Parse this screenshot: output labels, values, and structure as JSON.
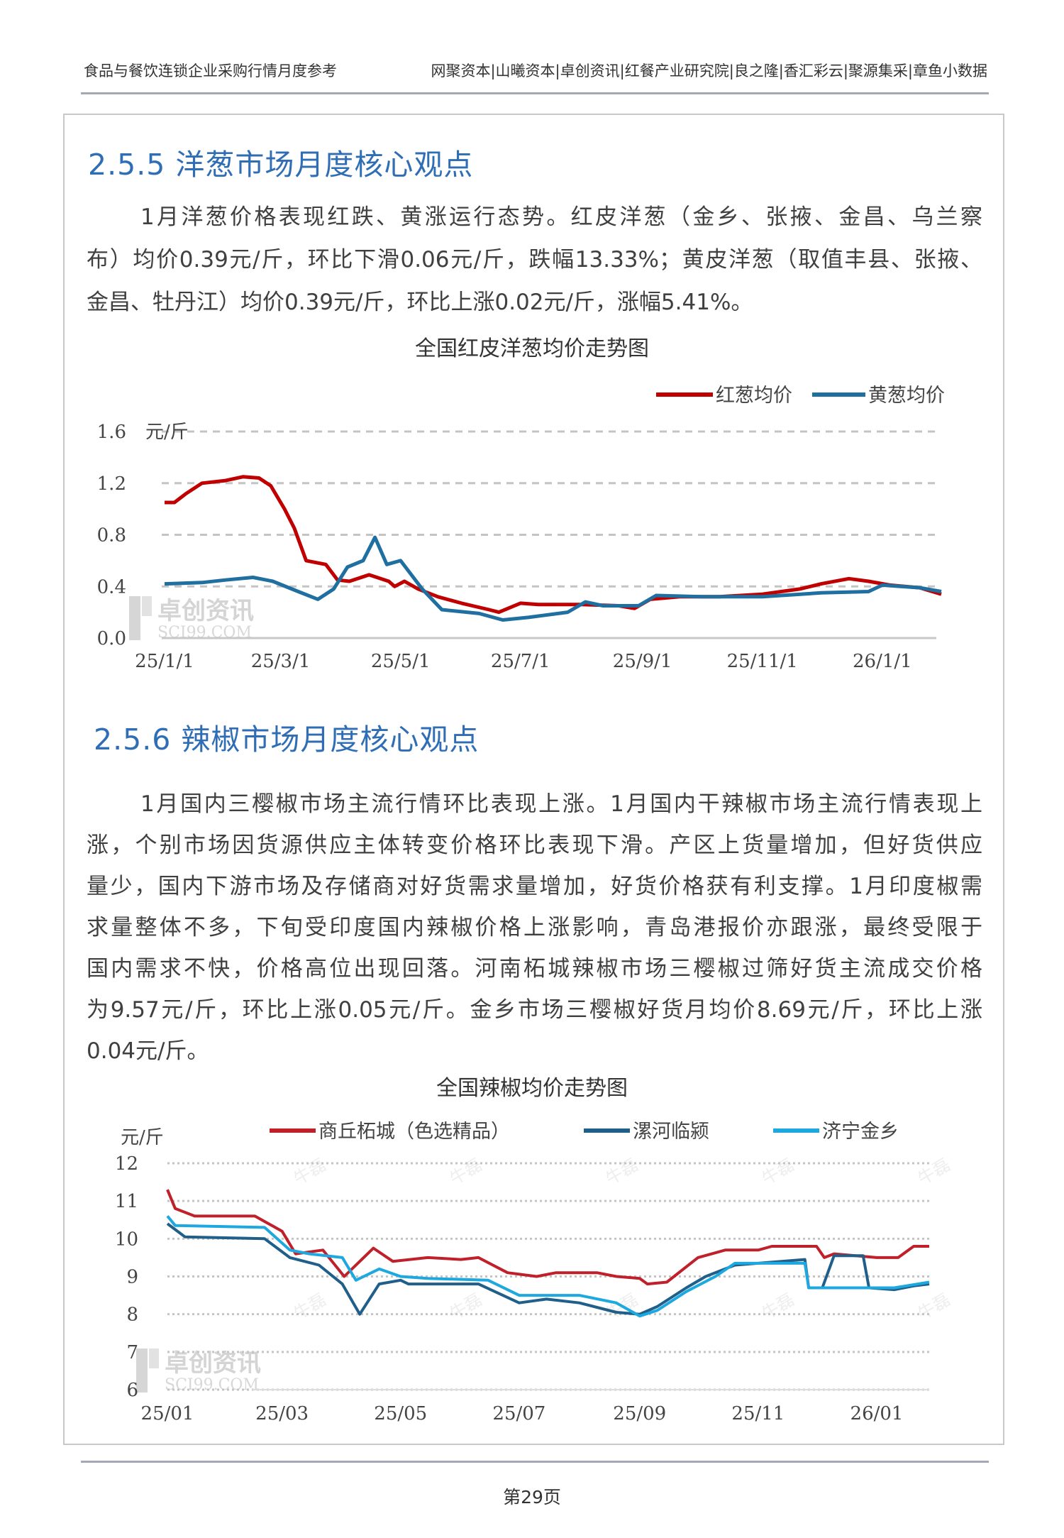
{
  "header": {
    "left": "食品与餐饮连锁企业采购行情月度参考",
    "right": "网聚资本|山曦资本|卓创资讯|红餐产业研究院|良之隆|香汇彩云|聚源集采|章鱼小数据"
  },
  "section_onion": {
    "heading": "2.5.5  洋葱市场月度核心观点",
    "lines": [
      "1月洋葱价格表现红跌、黄涨运行态势。红皮洋葱（金乡、张掖、金昌、乌兰察",
      "布）均价0.39元/斤，环比下滑0.06元/斤，跌幅13.33%；黄皮洋葱（取值丰县、张掖、",
      "金昌、牡丹江）均价0.39元/斤，环比上涨0.02元/斤，涨幅5.41%。"
    ],
    "chart_title": "全国红皮洋葱均价走势图"
  },
  "section_pepper": {
    "heading": "2.5.6  辣椒市场月度核心观点",
    "lines": [
      "1月国内三樱椒市场主流行情环比表现上涨。1月国内干辣椒市场主流行情表现上",
      "涨，个别市场因货源供应主体转变价格环比表现下滑。产区上货量增加，但好货供应",
      "量少，国内下游市场及存储商对好货需求量增加，好货价格获有利支撑。1月印度椒需",
      "求量整体不多，下旬受印度国内辣椒价格上涨影响，青岛港报价亦跟涨，最终受限于",
      "国内需求不快，价格高位出现回落。河南柘城辣椒市场三樱椒过筛好货主流成交价格",
      "为9.57元/斤，环比上涨0.05元/斤。金乡市场三樱椒好货月均价8.69元/斤，环比上涨",
      "0.04元/斤。"
    ],
    "chart_title": "全国辣椒均价走势图"
  },
  "watermark": {
    "cn": "卓创资讯",
    "en": "SCI99.COM",
    "author": "牛磊"
  },
  "footer": {
    "page": "第29页"
  },
  "chart_data": [
    {
      "type": "line",
      "title": "全国红皮洋葱均价走势图",
      "ylabel": "元/斤",
      "ylim": [
        0,
        1.6
      ],
      "yticks": [
        "0.0",
        "0.4",
        "0.8",
        "1.2",
        "1.6"
      ],
      "xticks": [
        "25/1/1",
        "25/3/1",
        "25/5/1",
        "25/7/1",
        "25/9/1",
        "25/11/1",
        "26/1/1"
      ],
      "xtick_dates": [
        "2025-01-01",
        "2025-03-01",
        "2025-05-01",
        "2025-07-01",
        "2025-09-01",
        "2025-11-01",
        "2026-01-01"
      ],
      "xlim": [
        "2025-01-01",
        "2026-01-31"
      ],
      "grid": true,
      "legend": "top-right",
      "series": [
        {
          "name": "红葱均价",
          "color": "#c00000",
          "points": [
            [
              "2025-01-01",
              1.05
            ],
            [
              "2025-01-06",
              1.05
            ],
            [
              "2025-01-12",
              1.12
            ],
            [
              "2025-01-20",
              1.2
            ],
            [
              "2025-02-01",
              1.22
            ],
            [
              "2025-02-10",
              1.25
            ],
            [
              "2025-02-18",
              1.24
            ],
            [
              "2025-02-24",
              1.18
            ],
            [
              "2025-03-03",
              1.0
            ],
            [
              "2025-03-08",
              0.85
            ],
            [
              "2025-03-14",
              0.6
            ],
            [
              "2025-03-24",
              0.57
            ],
            [
              "2025-03-30",
              0.45
            ],
            [
              "2025-04-05",
              0.44
            ],
            [
              "2025-04-15",
              0.49
            ],
            [
              "2025-04-25",
              0.44
            ],
            [
              "2025-04-28",
              0.4
            ],
            [
              "2025-05-03",
              0.44
            ],
            [
              "2025-05-10",
              0.38
            ],
            [
              "2025-05-20",
              0.32
            ],
            [
              "2025-06-01",
              0.27
            ],
            [
              "2025-06-15",
              0.22
            ],
            [
              "2025-06-20",
              0.2
            ],
            [
              "2025-07-01",
              0.27
            ],
            [
              "2025-07-10",
              0.26
            ],
            [
              "2025-08-01",
              0.26
            ],
            [
              "2025-08-20",
              0.25
            ],
            [
              "2025-08-28",
              0.23
            ],
            [
              "2025-09-05",
              0.3
            ],
            [
              "2025-09-20",
              0.32
            ],
            [
              "2025-10-10",
              0.32
            ],
            [
              "2025-11-01",
              0.34
            ],
            [
              "2025-11-20",
              0.38
            ],
            [
              "2025-12-01",
              0.42
            ],
            [
              "2025-12-15",
              0.46
            ],
            [
              "2025-12-25",
              0.44
            ],
            [
              "2026-01-05",
              0.41
            ],
            [
              "2026-01-20",
              0.39
            ],
            [
              "2026-01-31",
              0.34
            ]
          ]
        },
        {
          "name": "黄葱均价",
          "color": "#1f6fa0",
          "points": [
            [
              "2025-01-01",
              0.42
            ],
            [
              "2025-01-20",
              0.43
            ],
            [
              "2025-02-01",
              0.45
            ],
            [
              "2025-02-15",
              0.47
            ],
            [
              "2025-02-25",
              0.44
            ],
            [
              "2025-03-10",
              0.36
            ],
            [
              "2025-03-20",
              0.3
            ],
            [
              "2025-03-28",
              0.38
            ],
            [
              "2025-04-04",
              0.55
            ],
            [
              "2025-04-12",
              0.6
            ],
            [
              "2025-04-18",
              0.78
            ],
            [
              "2025-04-24",
              0.57
            ],
            [
              "2025-05-01",
              0.6
            ],
            [
              "2025-05-12",
              0.38
            ],
            [
              "2025-05-22",
              0.22
            ],
            [
              "2025-06-10",
              0.19
            ],
            [
              "2025-06-22",
              0.14
            ],
            [
              "2025-07-05",
              0.16
            ],
            [
              "2025-07-25",
              0.2
            ],
            [
              "2025-08-03",
              0.28
            ],
            [
              "2025-08-12",
              0.25
            ],
            [
              "2025-08-30",
              0.25
            ],
            [
              "2025-09-08",
              0.33
            ],
            [
              "2025-10-01",
              0.32
            ],
            [
              "2025-11-01",
              0.32
            ],
            [
              "2025-12-01",
              0.35
            ],
            [
              "2025-12-25",
              0.36
            ],
            [
              "2026-01-01",
              0.41
            ],
            [
              "2026-01-20",
              0.39
            ],
            [
              "2026-01-31",
              0.36
            ]
          ]
        }
      ]
    },
    {
      "type": "line",
      "title": "全国辣椒均价走势图",
      "ylabel": "元/斤",
      "ylim": [
        6,
        12
      ],
      "yticks": [
        "6",
        "7",
        "8",
        "9",
        "10",
        "11",
        "12"
      ],
      "xticks": [
        "25/01",
        "25/03",
        "25/05",
        "25/07",
        "25/09",
        "25/11",
        "26/01"
      ],
      "xtick_dates": [
        "2025-01-01",
        "2025-03-01",
        "2025-05-01",
        "2025-07-01",
        "2025-09-01",
        "2025-11-01",
        "2026-01-01"
      ],
      "xlim": [
        "2025-01-01",
        "2026-01-28"
      ],
      "grid": true,
      "legend": "top",
      "series": [
        {
          "name": "商丘柘城（色选精品）",
          "color": "#c0202a",
          "points": [
            [
              "2025-01-01",
              11.3
            ],
            [
              "2025-01-05",
              10.8
            ],
            [
              "2025-01-15",
              10.6
            ],
            [
              "2025-02-15",
              10.6
            ],
            [
              "2025-03-01",
              10.2
            ],
            [
              "2025-03-08",
              9.6
            ],
            [
              "2025-03-22",
              9.7
            ],
            [
              "2025-04-02",
              9.0
            ],
            [
              "2025-04-12",
              9.5
            ],
            [
              "2025-04-17",
              9.75
            ],
            [
              "2025-04-27",
              9.4
            ],
            [
              "2025-05-15",
              9.5
            ],
            [
              "2025-06-01",
              9.45
            ],
            [
              "2025-06-10",
              9.5
            ],
            [
              "2025-06-25",
              9.1
            ],
            [
              "2025-07-10",
              9.0
            ],
            [
              "2025-07-20",
              9.1
            ],
            [
              "2025-08-10",
              9.1
            ],
            [
              "2025-08-20",
              9.0
            ],
            [
              "2025-09-01",
              8.95
            ],
            [
              "2025-09-05",
              8.8
            ],
            [
              "2025-09-15",
              8.85
            ],
            [
              "2025-10-01",
              9.5
            ],
            [
              "2025-10-15",
              9.7
            ],
            [
              "2025-11-01",
              9.7
            ],
            [
              "2025-11-08",
              9.8
            ],
            [
              "2025-12-01",
              9.8
            ],
            [
              "2025-12-05",
              9.5
            ],
            [
              "2025-12-10",
              9.6
            ],
            [
              "2026-01-01",
              9.5
            ],
            [
              "2026-01-12",
              9.5
            ],
            [
              "2026-01-20",
              9.8
            ],
            [
              "2026-01-28",
              9.8
            ]
          ]
        },
        {
          "name": "漯河临颍",
          "color": "#1f5f8a",
          "points": [
            [
              "2025-01-01",
              10.4
            ],
            [
              "2025-01-10",
              10.05
            ],
            [
              "2025-02-20",
              10.0
            ],
            [
              "2025-03-05",
              9.5
            ],
            [
              "2025-03-20",
              9.3
            ],
            [
              "2025-04-01",
              8.8
            ],
            [
              "2025-04-10",
              8.0
            ],
            [
              "2025-04-20",
              8.8
            ],
            [
              "2025-05-01",
              8.9
            ],
            [
              "2025-05-05",
              8.8
            ],
            [
              "2025-06-10",
              8.8
            ],
            [
              "2025-07-01",
              8.3
            ],
            [
              "2025-07-15",
              8.4
            ],
            [
              "2025-08-01",
              8.3
            ],
            [
              "2025-08-20",
              8.05
            ],
            [
              "2025-09-01",
              8.0
            ],
            [
              "2025-09-10",
              8.2
            ],
            [
              "2025-09-25",
              8.7
            ],
            [
              "2025-10-05",
              9.0
            ],
            [
              "2025-10-20",
              9.3
            ],
            [
              "2025-11-25",
              9.45
            ],
            [
              "2025-11-27",
              8.7
            ],
            [
              "2025-12-04",
              8.7
            ],
            [
              "2025-12-10",
              9.55
            ],
            [
              "2025-12-25",
              9.55
            ],
            [
              "2025-12-28",
              8.7
            ],
            [
              "2026-01-10",
              8.65
            ],
            [
              "2026-01-20",
              8.75
            ],
            [
              "2026-01-28",
              8.8
            ]
          ]
        },
        {
          "name": "济宁金乡",
          "color": "#1ea8e0",
          "points": [
            [
              "2025-01-01",
              10.6
            ],
            [
              "2025-01-05",
              10.35
            ],
            [
              "2025-02-20",
              10.3
            ],
            [
              "2025-03-05",
              9.7
            ],
            [
              "2025-03-15",
              9.6
            ],
            [
              "2025-04-01",
              9.5
            ],
            [
              "2025-04-08",
              8.9
            ],
            [
              "2025-04-20",
              9.2
            ],
            [
              "2025-05-01",
              9.0
            ],
            [
              "2025-05-15",
              8.95
            ],
            [
              "2025-06-15",
              8.9
            ],
            [
              "2025-07-01",
              8.5
            ],
            [
              "2025-08-01",
              8.5
            ],
            [
              "2025-08-20",
              8.3
            ],
            [
              "2025-09-01",
              7.95
            ],
            [
              "2025-09-10",
              8.1
            ],
            [
              "2025-09-25",
              8.6
            ],
            [
              "2025-10-10",
              9.0
            ],
            [
              "2025-10-20",
              9.35
            ],
            [
              "2025-11-25",
              9.35
            ],
            [
              "2025-11-27",
              8.7
            ],
            [
              "2025-12-20",
              8.7
            ],
            [
              "2026-01-10",
              8.7
            ],
            [
              "2026-01-28",
              8.85
            ]
          ]
        }
      ]
    }
  ]
}
